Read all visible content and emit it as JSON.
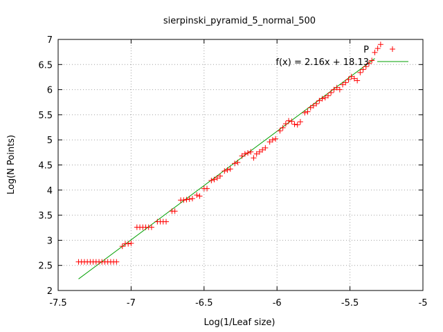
{
  "chart_data": {
    "type": "scatter",
    "title": "sierpinski_pyramid_5_normal_500",
    "xlabel": "Log(1/Leaf size)",
    "ylabel": "Log(N Points)",
    "xlim": [
      -7.5,
      -5
    ],
    "ylim": [
      2,
      7
    ],
    "x_ticks": [
      "-7.5",
      "-7",
      "-6.5",
      "-6",
      "-5.5",
      "-5"
    ],
    "y_ticks": [
      "2",
      "2.5",
      "3",
      "3.5",
      "4",
      "4.5",
      "5",
      "5.5",
      "6",
      "6.5",
      "7"
    ],
    "grid": true,
    "legend_position": "top-right",
    "series": [
      {
        "name": "P",
        "kind": "points",
        "marker": "+",
        "color": "#ff0000",
        "points": [
          [
            -7.36,
            2.57
          ],
          [
            -7.34,
            2.57
          ],
          [
            -7.32,
            2.57
          ],
          [
            -7.3,
            2.57
          ],
          [
            -7.28,
            2.57
          ],
          [
            -7.26,
            2.57
          ],
          [
            -7.24,
            2.57
          ],
          [
            -7.22,
            2.57
          ],
          [
            -7.2,
            2.57
          ],
          [
            -7.18,
            2.57
          ],
          [
            -7.16,
            2.57
          ],
          [
            -7.14,
            2.57
          ],
          [
            -7.12,
            2.57
          ],
          [
            -7.1,
            2.57
          ],
          [
            -7.06,
            2.88
          ],
          [
            -7.04,
            2.93
          ],
          [
            -7.02,
            2.93
          ],
          [
            -7.0,
            2.94
          ],
          [
            -6.96,
            3.26
          ],
          [
            -6.94,
            3.26
          ],
          [
            -6.92,
            3.26
          ],
          [
            -6.9,
            3.26
          ],
          [
            -6.88,
            3.26
          ],
          [
            -6.86,
            3.26
          ],
          [
            -6.82,
            3.37
          ],
          [
            -6.8,
            3.37
          ],
          [
            -6.78,
            3.37
          ],
          [
            -6.76,
            3.37
          ],
          [
            -6.72,
            3.58
          ],
          [
            -6.7,
            3.58
          ],
          [
            -6.66,
            3.8
          ],
          [
            -6.64,
            3.8
          ],
          [
            -6.62,
            3.81
          ],
          [
            -6.6,
            3.82
          ],
          [
            -6.58,
            3.83
          ],
          [
            -6.55,
            3.9
          ],
          [
            -6.53,
            3.88
          ],
          [
            -6.5,
            4.03
          ],
          [
            -6.48,
            4.03
          ],
          [
            -6.45,
            4.19
          ],
          [
            -6.43,
            4.21
          ],
          [
            -6.41,
            4.24
          ],
          [
            -6.39,
            4.28
          ],
          [
            -6.36,
            4.38
          ],
          [
            -6.34,
            4.4
          ],
          [
            -6.32,
            4.42
          ],
          [
            -6.29,
            4.53
          ],
          [
            -6.27,
            4.55
          ],
          [
            -6.24,
            4.68
          ],
          [
            -6.22,
            4.72
          ],
          [
            -6.2,
            4.74
          ],
          [
            -6.18,
            4.76
          ],
          [
            -6.16,
            4.64
          ],
          [
            -6.14,
            4.72
          ],
          [
            -6.12,
            4.76
          ],
          [
            -6.1,
            4.8
          ],
          [
            -6.08,
            4.84
          ],
          [
            -6.05,
            4.96
          ],
          [
            -6.03,
            5.0
          ],
          [
            -6.01,
            5.02
          ],
          [
            -5.98,
            5.18
          ],
          [
            -5.96,
            5.24
          ],
          [
            -5.94,
            5.32
          ],
          [
            -5.92,
            5.38
          ],
          [
            -5.9,
            5.37
          ],
          [
            -5.88,
            5.31
          ],
          [
            -5.86,
            5.3
          ],
          [
            -5.84,
            5.36
          ],
          [
            -5.81,
            5.54
          ],
          [
            -5.79,
            5.56
          ],
          [
            -5.77,
            5.64
          ],
          [
            -5.75,
            5.68
          ],
          [
            -5.73,
            5.72
          ],
          [
            -5.71,
            5.78
          ],
          [
            -5.69,
            5.82
          ],
          [
            -5.67,
            5.84
          ],
          [
            -5.65,
            5.88
          ],
          [
            -5.63,
            5.94
          ],
          [
            -5.61,
            6.0
          ],
          [
            -5.59,
            6.04
          ],
          [
            -5.57,
            6.0
          ],
          [
            -5.55,
            6.1
          ],
          [
            -5.53,
            6.14
          ],
          [
            -5.51,
            6.2
          ],
          [
            -5.49,
            6.26
          ],
          [
            -5.47,
            6.22
          ],
          [
            -5.45,
            6.18
          ],
          [
            -5.43,
            6.34
          ],
          [
            -5.41,
            6.4
          ],
          [
            -5.39,
            6.46
          ],
          [
            -5.37,
            6.52
          ],
          [
            -5.35,
            6.58
          ],
          [
            -5.33,
            6.74
          ],
          [
            -5.31,
            6.82
          ],
          [
            -5.29,
            6.9
          ]
        ]
      },
      {
        "name": "f(x) = 2.16x + 18.13",
        "kind": "line",
        "color": "#00a000",
        "x": [
          -7.36,
          -5.33
        ],
        "y": [
          2.23,
          6.62
        ]
      }
    ]
  }
}
